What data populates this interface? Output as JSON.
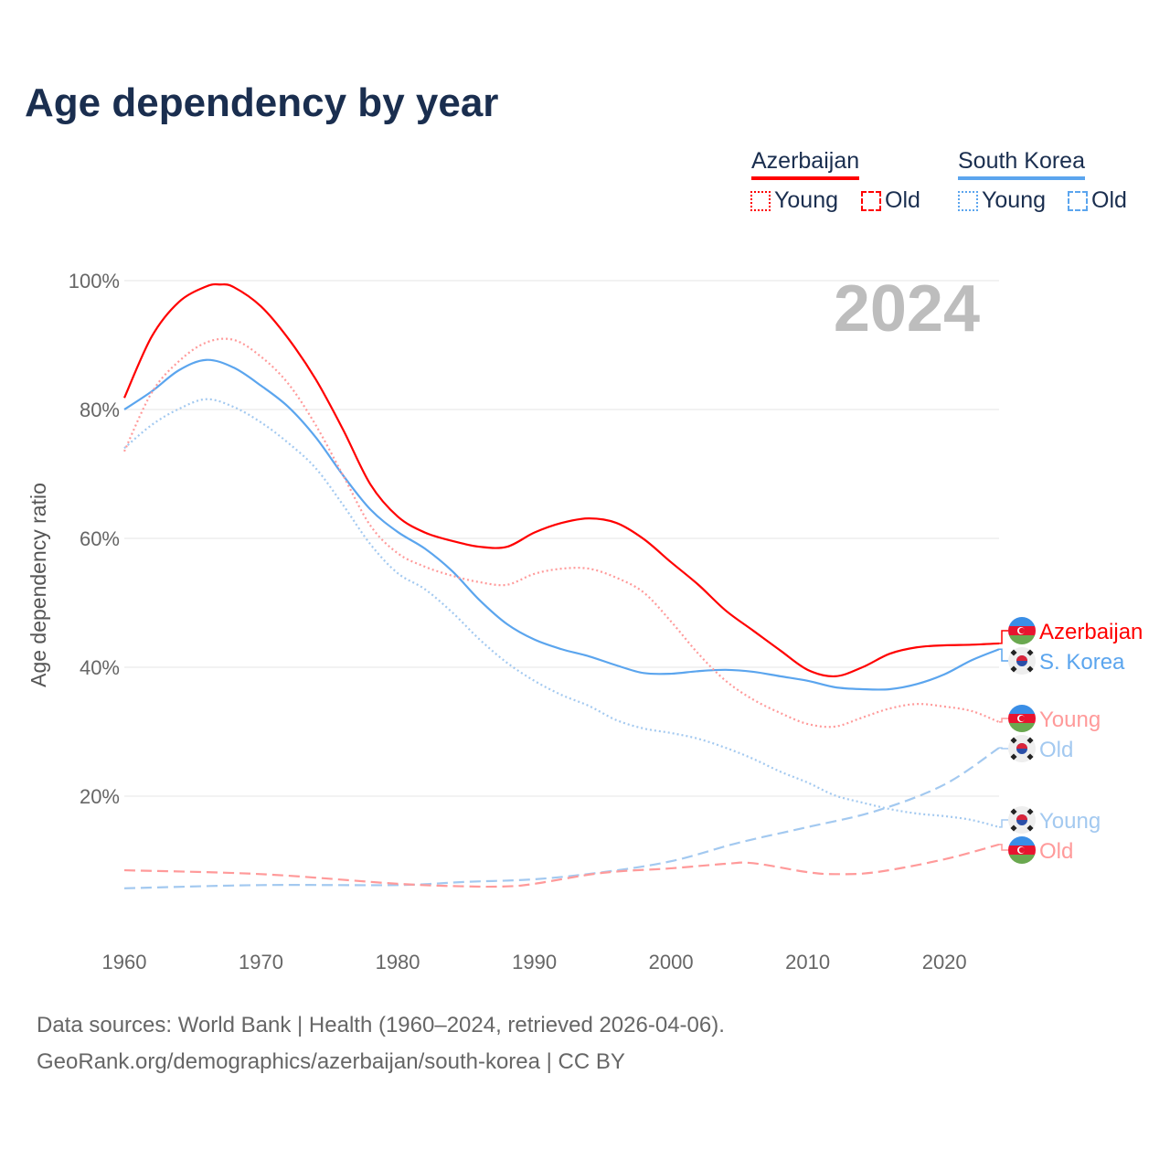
{
  "title": "Age dependency by year",
  "legend": {
    "countries": [
      {
        "name": "Azerbaijan",
        "color": "#ff0000",
        "young_label": "Young",
        "old_label": "Old"
      },
      {
        "name": "South Korea",
        "color": "#5ba5ee",
        "young_label": "Young",
        "old_label": "Old"
      }
    ]
  },
  "year_watermark": "2024",
  "footer": {
    "line1": "Data sources: World Bank | Health (1960–2024, retrieved 2026-04-06).",
    "line2": "GeoRank.org/demographics/azerbaijan/south-korea | CC BY"
  },
  "chart_data": {
    "type": "line",
    "title": "Age dependency by year",
    "xlabel": "",
    "ylabel": "Age dependency ratio",
    "xlim": [
      1960,
      2024
    ],
    "ylim": [
      0,
      100
    ],
    "xticks": [
      1960,
      1970,
      1980,
      1990,
      2000,
      2010,
      2020
    ],
    "xtick_labels": [
      "1960",
      "1970",
      "1980",
      "1990",
      "2000",
      "2010",
      "2020"
    ],
    "yticks": [
      20,
      40,
      60,
      80,
      100
    ],
    "ytick_labels": [
      "20%",
      "40%",
      "60%",
      "80%",
      "100%"
    ],
    "grid": true,
    "legend_position": "top-right",
    "series": [
      {
        "name": "Azerbaijan",
        "end_label": "Azerbaijan",
        "style": "solid",
        "color": "#ff0000",
        "x": [
          1960,
          1962,
          1964,
          1966,
          1967,
          1968,
          1970,
          1972,
          1974,
          1976,
          1978,
          1980,
          1982,
          1984,
          1986,
          1988,
          1990,
          1992,
          1994,
          1996,
          1998,
          2000,
          2002,
          2004,
          2006,
          2008,
          2010,
          2012,
          2014,
          2016,
          2018,
          2020,
          2022,
          2024
        ],
        "y": [
          81.8,
          91.3,
          96.7,
          99.1,
          99.4,
          99.0,
          96.0,
          91.0,
          84.7,
          76.9,
          68.4,
          63.4,
          60.9,
          59.6,
          58.7,
          58.7,
          60.9,
          62.4,
          63.1,
          62.4,
          59.9,
          56.3,
          52.8,
          48.8,
          45.7,
          42.6,
          39.6,
          38.6,
          40.0,
          42.1,
          43.1,
          43.4,
          43.5,
          43.7
        ]
      },
      {
        "name": "South Korea",
        "end_label": "S. Korea",
        "style": "solid",
        "color": "#5ba5ee",
        "x": [
          1960,
          1962,
          1964,
          1966,
          1968,
          1970,
          1972,
          1974,
          1976,
          1978,
          1980,
          1982,
          1984,
          1986,
          1988,
          1990,
          1992,
          1994,
          1996,
          1998,
          2000,
          2002,
          2004,
          2006,
          2008,
          2010,
          2012,
          2014,
          2016,
          2018,
          2020,
          2022,
          2024
        ],
        "y": [
          80.0,
          82.8,
          86.1,
          87.7,
          86.5,
          83.7,
          80.4,
          75.7,
          69.8,
          64.5,
          61.0,
          58.4,
          54.9,
          50.4,
          46.7,
          44.3,
          42.8,
          41.7,
          40.3,
          39.1,
          39.0,
          39.4,
          39.6,
          39.3,
          38.6,
          37.9,
          36.9,
          36.6,
          36.6,
          37.4,
          38.9,
          41.1,
          42.8
        ]
      },
      {
        "name": "Azerbaijan Young",
        "end_label": "Young",
        "style": "dotted",
        "color": "#ff9a9a",
        "x": [
          1960,
          1962,
          1964,
          1966,
          1968,
          1970,
          1972,
          1974,
          1976,
          1978,
          1980,
          1982,
          1984,
          1986,
          1988,
          1990,
          1992,
          1994,
          1996,
          1998,
          2000,
          2002,
          2004,
          2006,
          2008,
          2010,
          2012,
          2014,
          2016,
          2018,
          2020,
          2022,
          2024
        ],
        "y": [
          73.5,
          82.6,
          87.5,
          90.4,
          90.8,
          88.2,
          84.0,
          77.6,
          69.8,
          62.0,
          57.7,
          55.6,
          54.2,
          53.2,
          52.8,
          54.5,
          55.3,
          55.3,
          53.9,
          51.6,
          47.1,
          42.1,
          37.9,
          35.0,
          32.9,
          31.2,
          30.8,
          32.2,
          33.6,
          34.3,
          33.9,
          33.2,
          31.5
        ]
      },
      {
        "name": "South Korea Old",
        "end_label": "Old",
        "style": "dashed",
        "color": "#a3c9f0",
        "x": [
          1960,
          1970,
          1980,
          1985,
          1990,
          1995,
          2000,
          2005,
          2010,
          2015,
          2020,
          2024
        ],
        "y": [
          5.7,
          6.2,
          6.2,
          6.7,
          7.1,
          8.2,
          9.9,
          12.8,
          15.2,
          17.7,
          21.8,
          27.5
        ]
      },
      {
        "name": "South Korea Young",
        "end_label": "Young",
        "style": "dotted",
        "color": "#a3c9f0",
        "x": [
          1960,
          1962,
          1964,
          1966,
          1968,
          1970,
          1972,
          1974,
          1976,
          1978,
          1980,
          1982,
          1984,
          1986,
          1988,
          1990,
          1992,
          1994,
          1996,
          1998,
          2000,
          2002,
          2004,
          2006,
          2008,
          2010,
          2012,
          2014,
          2016,
          2018,
          2020,
          2022,
          2024
        ],
        "y": [
          74.0,
          77.6,
          80.1,
          81.6,
          80.4,
          78.0,
          74.8,
          70.9,
          65.2,
          59.1,
          54.6,
          52.1,
          48.5,
          44.3,
          40.7,
          37.9,
          35.7,
          34.0,
          31.8,
          30.5,
          29.8,
          28.9,
          27.5,
          25.8,
          23.8,
          22.1,
          20.1,
          19.0,
          18.0,
          17.3,
          16.9,
          16.3,
          15.2
        ]
      },
      {
        "name": "Azerbaijan Old",
        "end_label": "Old",
        "style": "dashed",
        "color": "#ff9a9a",
        "x": [
          1960,
          1970,
          1980,
          1985,
          1988,
          1990,
          1995,
          2000,
          2004,
          2006,
          2010,
          2012,
          2015,
          2020,
          2024
        ],
        "y": [
          8.5,
          7.9,
          6.4,
          6.0,
          6.0,
          6.4,
          8.1,
          8.8,
          9.5,
          9.6,
          8.2,
          7.9,
          8.2,
          10.2,
          12.5
        ]
      }
    ]
  }
}
